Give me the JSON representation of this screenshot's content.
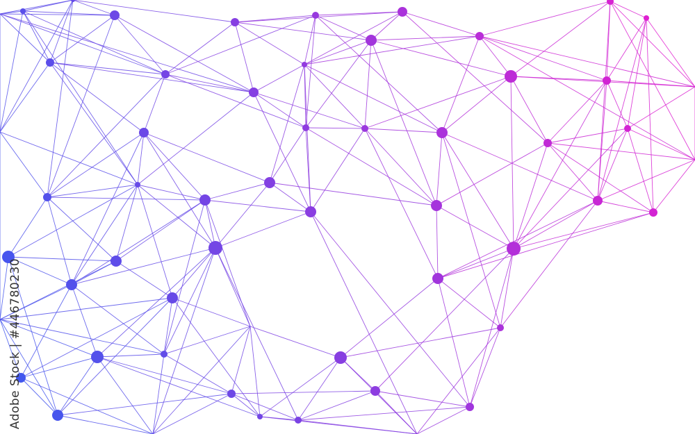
{
  "watermark": {
    "credit": "Adobe Stock | #446780230"
  },
  "colors": {
    "start": "#3a5af0",
    "end": "#e81ccf",
    "background": "#ffffff"
  }
}
